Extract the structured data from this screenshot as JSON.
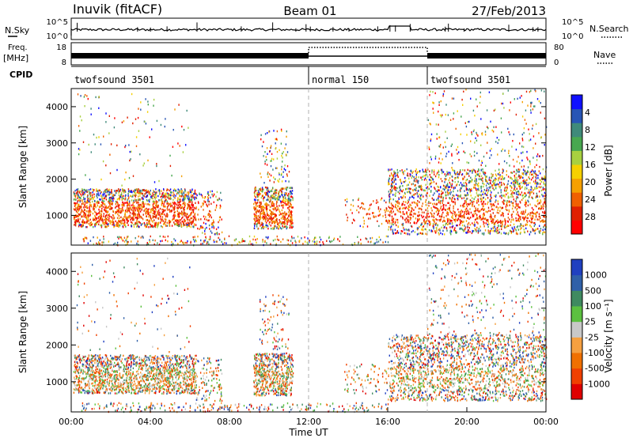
{
  "header": {
    "station": "Inuvik (fitACF)",
    "beam": "Beam 01",
    "date": "27/Feb/2013"
  },
  "top_panels": {
    "nsky_label": "N.Sky",
    "nsky_ticks": [
      "10^5",
      "10^0"
    ],
    "nsky_right_ticks": [
      "10^5",
      "10^0"
    ],
    "nsearch_label": "N.Search",
    "freq_label": "Freq.",
    "freq_unit": "[MHz]",
    "freq_ticks": [
      "18",
      "8"
    ],
    "nave_label": "Nave",
    "nave_ticks": [
      "80",
      "0"
    ],
    "cpid_label": "CPID",
    "cpid_segments": [
      {
        "label": "twofsound 3501",
        "start_h": 0,
        "end_h": 12
      },
      {
        "label": "normal 150",
        "start_h": 12,
        "end_h": 18
      },
      {
        "label": "twofsound 3501",
        "start_h": 18,
        "end_h": 24
      }
    ]
  },
  "chart_data": [
    {
      "type": "heatmap",
      "ylabel": "Slant Range [km]",
      "xlim": [
        0,
        24
      ],
      "ylim": [
        180,
        4500
      ],
      "yticks": [
        "1000",
        "2000",
        "3000",
        "4000"
      ],
      "colorbar": {
        "label": "Power [dB]",
        "ticks": [
          "4",
          "8",
          "12",
          "16",
          "20",
          "24",
          "28"
        ],
        "colors": [
          "#1010ff",
          "#2855b5",
          "#3f8a7a",
          "#48a850",
          "#a8d040",
          "#f5d000",
          "#f5a000",
          "#f06000",
          "#e02000",
          "#ff0000"
        ]
      }
    },
    {
      "type": "heatmap",
      "ylabel": "Slant Range [km]",
      "xlabel": "Time UT",
      "xlim": [
        0,
        24
      ],
      "ylim": [
        180,
        4500
      ],
      "yticks": [
        "1000",
        "2000",
        "3000",
        "4000"
      ],
      "xticks": [
        "00:00",
        "04:00",
        "08:00",
        "12:00",
        "16:00",
        "20:00",
        "00:00"
      ],
      "colorbar": {
        "label": "Velocity [m s⁻¹]",
        "ticks": [
          "1000",
          "500",
          "100",
          "25",
          "-25",
          "-100",
          "-500",
          "-1000"
        ],
        "colors": [
          "#2040c0",
          "#3060a8",
          "#3f8a60",
          "#5cc040",
          "#c8c8c8",
          "#f5a040",
          "#f07000",
          "#f04000",
          "#e00000"
        ]
      }
    }
  ]
}
